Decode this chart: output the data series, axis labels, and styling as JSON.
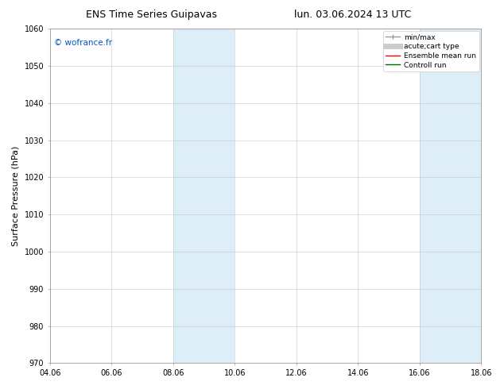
{
  "title_left": "ENS Time Series Guipavas",
  "title_right": "lun. 03.06.2024 13 UTC",
  "ylabel": "Surface Pressure (hPa)",
  "ylim": [
    970,
    1060
  ],
  "yticks": [
    970,
    980,
    990,
    1000,
    1010,
    1020,
    1030,
    1040,
    1050,
    1060
  ],
  "xtick_positions": [
    0,
    2,
    4,
    6,
    8,
    10,
    12,
    14
  ],
  "xtick_labels": [
    "04.06",
    "06.06",
    "08.06",
    "10.06",
    "12.06",
    "14.06",
    "16.06",
    "18.06"
  ],
  "shaded_bands": [
    {
      "x_start": 4.0,
      "x_end": 6.0,
      "color": "#ddeef8"
    },
    {
      "x_start": 12.0,
      "x_end": 14.0,
      "color": "#ddeef8"
    }
  ],
  "watermark_text": "© wofrance.fr",
  "watermark_color": "#0055cc",
  "background_color": "#ffffff",
  "plot_bg_color": "#ffffff",
  "grid_color": "#bbbbbb",
  "title_fontsize": 9,
  "tick_fontsize": 7,
  "ylabel_fontsize": 8,
  "legend_entries": [
    {
      "label": "min/max",
      "color": "#999999",
      "lw": 1.0
    },
    {
      "label": "acute;cart type",
      "color": "#cccccc",
      "lw": 5
    },
    {
      "label": "Ensemble mean run",
      "color": "#ff0000",
      "lw": 1.0
    },
    {
      "label": "Controll run",
      "color": "#006600",
      "lw": 1.0
    }
  ],
  "x_num_start": 0,
  "x_num_end": 14
}
